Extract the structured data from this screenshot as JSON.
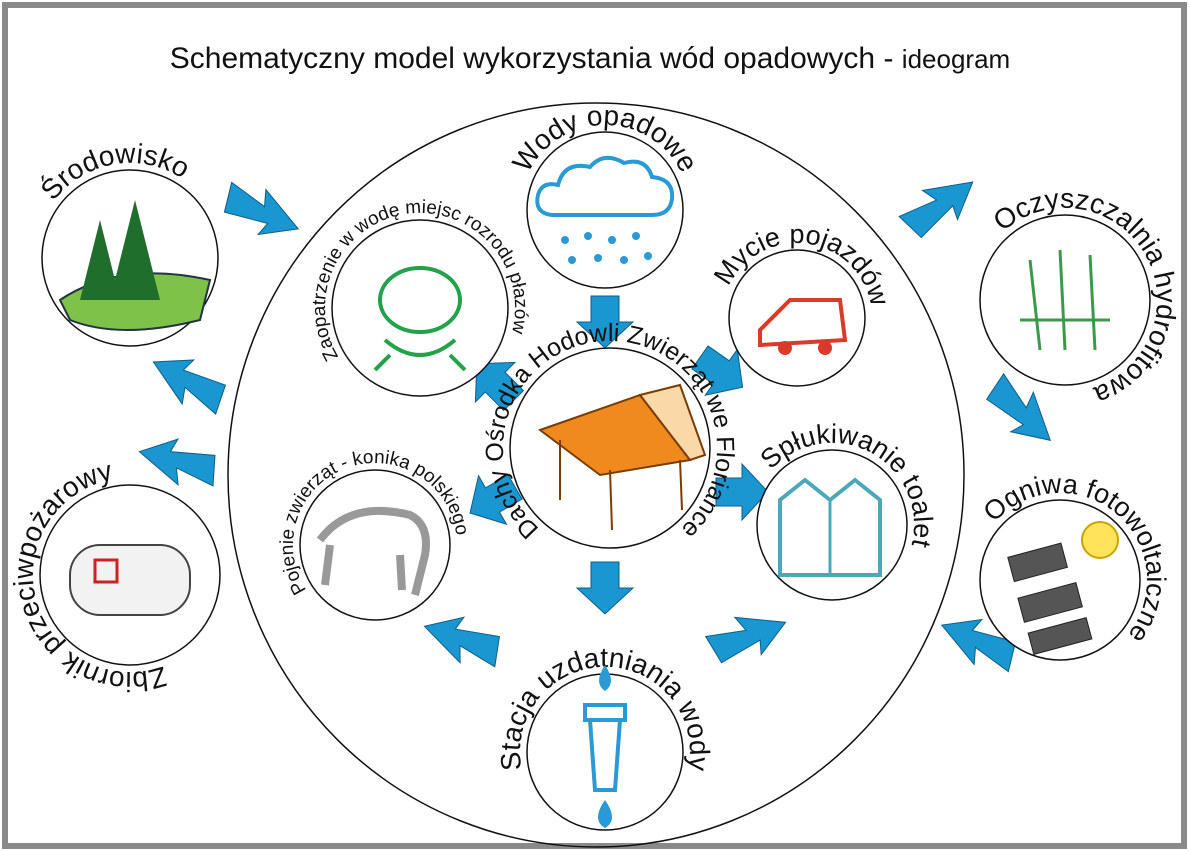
{
  "header": {
    "title": "Schematyczny model wykorzystania wód opadowych -",
    "subtitle": "ideogram"
  },
  "nodes": [
    {
      "label": "Dachy Ośrodka Hodowli Zwierząt we Floriance"
    },
    {
      "label": "Wody opadowe"
    },
    {
      "label": "Mycie pojazdów"
    },
    {
      "label": "Spłukiwanie toalet"
    },
    {
      "label": "Stacja uzdatniania wody"
    },
    {
      "label": "Pojenie zwierząt - konika polskiego"
    },
    {
      "label": "Zaopatrzenie w wodę miejsc rozrodu płazów"
    },
    {
      "label": "Środowisko"
    },
    {
      "label": "Oczyszczalnia hydrofitowa"
    },
    {
      "label": "Ogniwa fotowoltaiczne"
    },
    {
      "label": "Zbiornik przeciwpożarowy"
    }
  ]
}
